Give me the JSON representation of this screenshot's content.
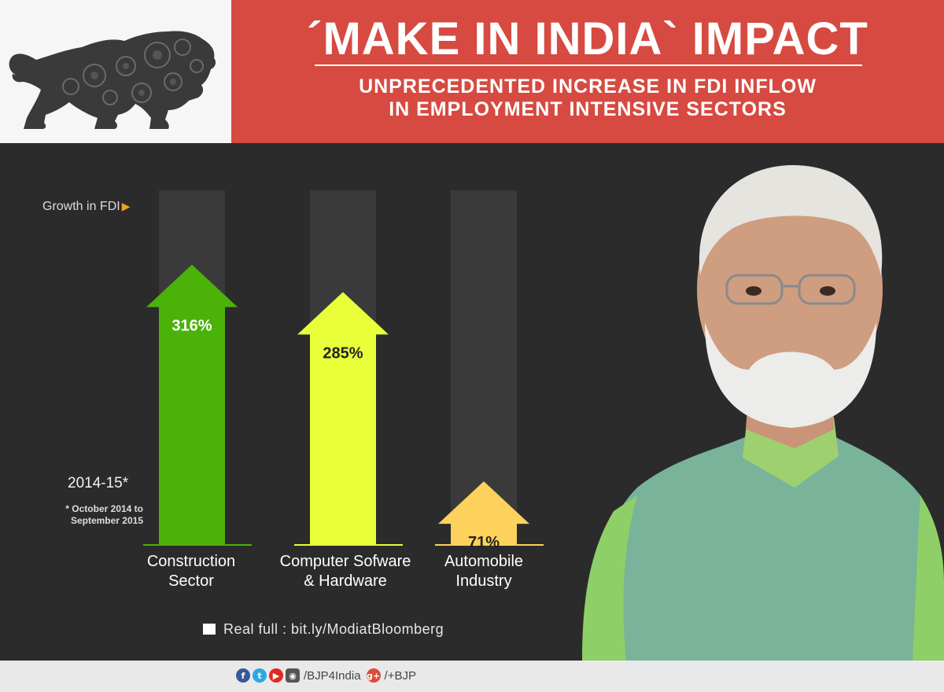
{
  "header": {
    "title": "´MAKE IN INDIA` IMPACT",
    "subtitle_line1": "UNPRECEDENTED INCREASE IN FDI INFLOW",
    "subtitle_line2": "IN EMPLOYMENT INTENSIVE SECTORS"
  },
  "chart_data": {
    "type": "bar",
    "title": "",
    "ylabel": "Growth in FDI",
    "period": "2014-15*",
    "period_note": "* October 2014 to September 2015",
    "ylim": [
      0,
      400
    ],
    "categories": [
      "Construction Sector",
      "Computer Sofware & Hardware",
      "Automobile Industry"
    ],
    "category_lines": [
      [
        "Construction",
        "Sector"
      ],
      [
        "Computer Sofware",
        "& Hardware"
      ],
      [
        "Automobile",
        "Industry"
      ]
    ],
    "values": [
      316,
      285,
      71
    ],
    "value_labels": [
      "316%",
      "285%",
      "71%"
    ],
    "colors": [
      "#4bb20a",
      "#e8ff3a",
      "#fcd25c"
    ],
    "label_colors": [
      "#ffffff",
      "#222222",
      "#222222"
    ]
  },
  "source": {
    "text": "Real full : bit.ly/ModiatBloomberg"
  },
  "footer": {
    "handle1": "/BJP4India",
    "handle2": "/+BJP",
    "icons": [
      "facebook-icon",
      "twitter-icon",
      "youtube-icon",
      "instagram-icon",
      "google-plus-icon"
    ]
  }
}
